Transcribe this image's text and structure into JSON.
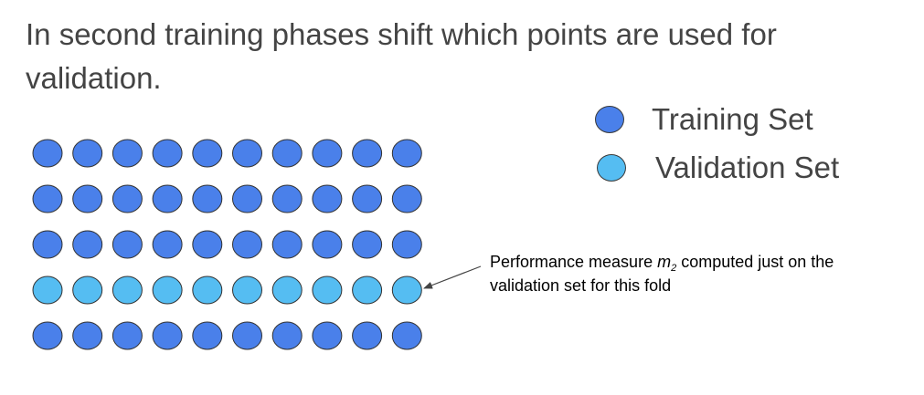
{
  "title": "In second training phases shift which points are used for validation.",
  "legend": [
    {
      "label": "Training Set",
      "color": "#4a80ea"
    },
    {
      "label": "Validation Set",
      "color": "#55bdf2"
    }
  ],
  "grid": {
    "rows": 5,
    "columns": 10,
    "validation_row": 4,
    "training_color": "#4a80ea",
    "validation_color": "#55bdf2"
  },
  "annotation": {
    "line1_prefix": "Performance measure ",
    "metric": "m",
    "metric_subscript": "2",
    "line1_suffix": " computed just on the",
    "line2": "validation set for this fold"
  }
}
